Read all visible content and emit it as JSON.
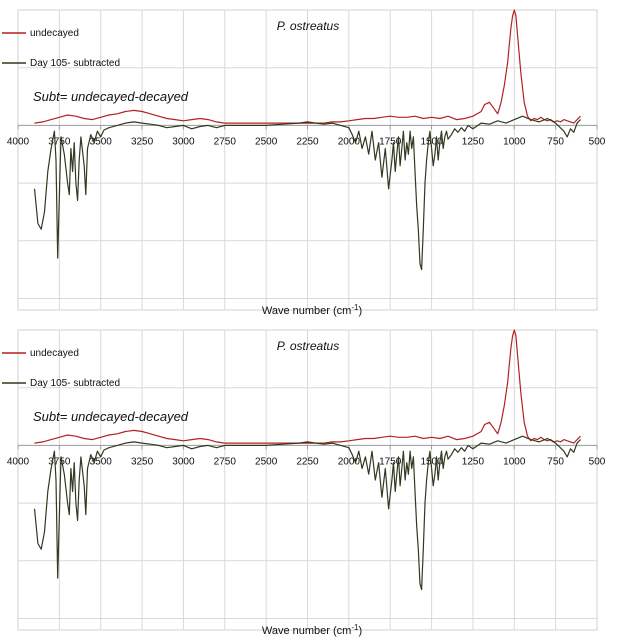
{
  "chart_data": [
    {
      "type": "line",
      "title": "P. ostreatus",
      "xlabel": "Wave number (cm",
      "xlabel_sup": "-1",
      "xlabel_close": ")",
      "annotation": "Subt= undecayed-decayed",
      "xlim": [
        4000,
        500
      ],
      "x_reversed": true,
      "ylim": [
        -1.6,
        1
      ],
      "grid": true,
      "legend_position": "top-left",
      "x_ticks": [
        "4000",
        "3750",
        "3500",
        "3250",
        "3000",
        "2750",
        "2500",
        "2250",
        "2000",
        "1750",
        "1500",
        "1250",
        "1000",
        "750",
        "500"
      ],
      "series": [
        {
          "name": "undecayed",
          "color": "#b22222",
          "x": [
            3900,
            3850,
            3800,
            3750,
            3700,
            3650,
            3600,
            3550,
            3500,
            3450,
            3400,
            3350,
            3300,
            3250,
            3200,
            3150,
            3100,
            3050,
            3000,
            2950,
            2900,
            2850,
            2800,
            2750,
            2700,
            2600,
            2500,
            2400,
            2350,
            2300,
            2250,
            2200,
            2150,
            2100,
            2050,
            2000,
            1950,
            1900,
            1850,
            1800,
            1750,
            1700,
            1650,
            1600,
            1550,
            1500,
            1450,
            1400,
            1350,
            1300,
            1250,
            1200,
            1180,
            1150,
            1120,
            1100,
            1080,
            1060,
            1040,
            1030,
            1020,
            1010,
            1000,
            990,
            980,
            960,
            940,
            920,
            900,
            880,
            860,
            840,
            820,
            800,
            780,
            760,
            740,
            720,
            700,
            680,
            660,
            640,
            620,
            600
          ],
          "y": [
            0.02,
            0.03,
            0.05,
            0.07,
            0.09,
            0.08,
            0.06,
            0.05,
            0.07,
            0.09,
            0.1,
            0.12,
            0.13,
            0.12,
            0.1,
            0.08,
            0.06,
            0.05,
            0.04,
            0.05,
            0.06,
            0.05,
            0.03,
            0.02,
            0.02,
            0.02,
            0.02,
            0.02,
            0.02,
            0.02,
            0.02,
            0.02,
            0.02,
            0.03,
            0.03,
            0.04,
            0.05,
            0.06,
            0.06,
            0.07,
            0.08,
            0.07,
            0.07,
            0.08,
            0.06,
            0.07,
            0.06,
            0.08,
            0.05,
            0.06,
            0.08,
            0.12,
            0.18,
            0.2,
            0.14,
            0.1,
            0.2,
            0.35,
            0.55,
            0.7,
            0.85,
            0.95,
            1.0,
            0.95,
            0.78,
            0.45,
            0.2,
            0.08,
            0.04,
            0.06,
            0.05,
            0.07,
            0.05,
            0.04,
            0.05,
            0.03,
            0.04,
            0.03,
            0.05,
            0.04,
            0.03,
            0.02,
            0.05,
            0.08
          ]
        },
        {
          "name": "Day 105- subtracted",
          "color": "#2f3a1f",
          "x": [
            3900,
            3880,
            3860,
            3840,
            3820,
            3800,
            3780,
            3770,
            3760,
            3750,
            3740,
            3720,
            3700,
            3690,
            3680,
            3670,
            3660,
            3650,
            3640,
            3630,
            3620,
            3600,
            3590,
            3580,
            3560,
            3540,
            3520,
            3500,
            3480,
            3450,
            3400,
            3350,
            3300,
            3250,
            3200,
            3150,
            3100,
            3050,
            3000,
            2950,
            2900,
            2850,
            2800,
            2750,
            2700,
            2600,
            2500,
            2400,
            2300,
            2250,
            2200,
            2150,
            2100,
            2050,
            2000,
            1980,
            1960,
            1940,
            1920,
            1900,
            1880,
            1860,
            1840,
            1820,
            1800,
            1780,
            1760,
            1740,
            1730,
            1720,
            1710,
            1700,
            1690,
            1680,
            1670,
            1660,
            1650,
            1640,
            1630,
            1620,
            1610,
            1600,
            1590,
            1580,
            1570,
            1560,
            1550,
            1540,
            1530,
            1520,
            1510,
            1500,
            1490,
            1480,
            1470,
            1460,
            1450,
            1440,
            1430,
            1420,
            1410,
            1400,
            1380,
            1360,
            1340,
            1320,
            1300,
            1280,
            1250,
            1220,
            1200,
            1150,
            1100,
            1050,
            1000,
            950,
            900,
            850,
            800,
            750,
            700,
            680,
            660,
            640,
            620,
            600
          ],
          "y": [
            -0.55,
            -0.85,
            -0.9,
            -0.75,
            -0.4,
            -0.2,
            -0.05,
            -0.3,
            -1.15,
            -0.6,
            -0.1,
            -0.25,
            -0.5,
            -0.6,
            -0.2,
            -0.4,
            -0.15,
            -0.5,
            -0.65,
            -0.3,
            -0.1,
            -0.35,
            -0.6,
            -0.2,
            -0.08,
            -0.15,
            -0.05,
            -0.1,
            -0.04,
            -0.02,
            0.0,
            0.02,
            0.03,
            0.02,
            0.01,
            0.0,
            -0.02,
            -0.01,
            0.0,
            -0.03,
            -0.01,
            0.0,
            -0.02,
            0.0,
            0.0,
            0.0,
            0.0,
            0.01,
            0.02,
            0.03,
            0.02,
            0.01,
            0.02,
            0.0,
            -0.02,
            -0.08,
            -0.15,
            -0.05,
            -0.2,
            -0.1,
            -0.25,
            -0.05,
            -0.3,
            -0.15,
            -0.45,
            -0.2,
            -0.55,
            -0.3,
            -0.15,
            -0.4,
            -0.25,
            -0.1,
            -0.35,
            -0.2,
            -0.05,
            -0.3,
            -0.15,
            -0.25,
            -0.05,
            -0.2,
            -0.1,
            -0.4,
            -0.7,
            -0.9,
            -1.2,
            -1.25,
            -0.9,
            -0.5,
            -0.3,
            -0.15,
            -0.05,
            -0.2,
            -0.35,
            -0.25,
            -0.1,
            -0.3,
            -0.15,
            -0.05,
            -0.2,
            -0.1,
            -0.05,
            -0.12,
            -0.08,
            -0.03,
            -0.06,
            -0.02,
            -0.05,
            0.0,
            -0.03,
            0.0,
            0.02,
            0.01,
            0.04,
            0.02,
            0.05,
            0.08,
            0.05,
            0.03,
            0.06,
            0.02,
            -0.05,
            -0.1,
            -0.03,
            -0.06,
            0.02,
            0.05
          ]
        }
      ]
    },
    {
      "type": "line",
      "title": "P. ostreatus",
      "xlabel": "Wave number (cm",
      "xlabel_sup": "-1",
      "xlabel_close": ")",
      "annotation": "Subt= undecayed-decayed",
      "xlim": [
        4000,
        500
      ],
      "x_reversed": true,
      "ylim": [
        -1.6,
        1
      ],
      "grid": true,
      "legend_position": "top-left",
      "x_ticks": [
        "4000",
        "3750",
        "3500",
        "3250",
        "3000",
        "2750",
        "2500",
        "2250",
        "2000",
        "1750",
        "1500",
        "1250",
        "1000",
        "750",
        "500"
      ],
      "series": [
        {
          "name": "undecayed",
          "color": "#b22222",
          "x": [
            3900,
            3850,
            3800,
            3750,
            3700,
            3650,
            3600,
            3550,
            3500,
            3450,
            3400,
            3350,
            3300,
            3250,
            3200,
            3150,
            3100,
            3050,
            3000,
            2950,
            2900,
            2850,
            2800,
            2750,
            2700,
            2600,
            2500,
            2400,
            2350,
            2300,
            2250,
            2200,
            2150,
            2100,
            2050,
            2000,
            1950,
            1900,
            1850,
            1800,
            1750,
            1700,
            1650,
            1600,
            1550,
            1500,
            1450,
            1400,
            1350,
            1300,
            1250,
            1200,
            1180,
            1150,
            1120,
            1100,
            1080,
            1060,
            1040,
            1030,
            1020,
            1010,
            1000,
            990,
            980,
            960,
            940,
            920,
            900,
            880,
            860,
            840,
            820,
            800,
            780,
            760,
            740,
            720,
            700,
            680,
            660,
            640,
            620,
            600
          ],
          "y": [
            0.02,
            0.03,
            0.05,
            0.07,
            0.09,
            0.08,
            0.06,
            0.05,
            0.07,
            0.09,
            0.1,
            0.12,
            0.13,
            0.12,
            0.1,
            0.08,
            0.06,
            0.05,
            0.04,
            0.05,
            0.06,
            0.05,
            0.03,
            0.02,
            0.02,
            0.02,
            0.02,
            0.02,
            0.02,
            0.02,
            0.02,
            0.02,
            0.02,
            0.03,
            0.03,
            0.04,
            0.05,
            0.06,
            0.06,
            0.07,
            0.08,
            0.07,
            0.07,
            0.08,
            0.06,
            0.07,
            0.06,
            0.08,
            0.05,
            0.06,
            0.08,
            0.12,
            0.18,
            0.2,
            0.14,
            0.1,
            0.2,
            0.35,
            0.55,
            0.7,
            0.85,
            0.95,
            1.0,
            0.95,
            0.78,
            0.45,
            0.2,
            0.08,
            0.04,
            0.06,
            0.05,
            0.07,
            0.05,
            0.04,
            0.05,
            0.03,
            0.04,
            0.03,
            0.05,
            0.04,
            0.03,
            0.02,
            0.05,
            0.08
          ]
        },
        {
          "name": "Day 105- subtracted",
          "color": "#2f3a1f",
          "x": [
            3900,
            3880,
            3860,
            3840,
            3820,
            3800,
            3780,
            3770,
            3760,
            3750,
            3740,
            3720,
            3700,
            3690,
            3680,
            3670,
            3660,
            3650,
            3640,
            3630,
            3620,
            3600,
            3590,
            3580,
            3560,
            3540,
            3520,
            3500,
            3480,
            3450,
            3400,
            3350,
            3300,
            3250,
            3200,
            3150,
            3100,
            3050,
            3000,
            2950,
            2900,
            2850,
            2800,
            2750,
            2700,
            2600,
            2500,
            2400,
            2300,
            2250,
            2200,
            2150,
            2100,
            2050,
            2000,
            1980,
            1960,
            1940,
            1920,
            1900,
            1880,
            1860,
            1840,
            1820,
            1800,
            1780,
            1760,
            1740,
            1730,
            1720,
            1710,
            1700,
            1690,
            1680,
            1670,
            1660,
            1650,
            1640,
            1630,
            1620,
            1610,
            1600,
            1590,
            1580,
            1570,
            1560,
            1550,
            1540,
            1530,
            1520,
            1510,
            1500,
            1490,
            1480,
            1470,
            1460,
            1450,
            1440,
            1430,
            1420,
            1410,
            1400,
            1380,
            1360,
            1340,
            1320,
            1300,
            1280,
            1250,
            1220,
            1200,
            1150,
            1100,
            1050,
            1000,
            950,
            900,
            850,
            800,
            750,
            700,
            680,
            660,
            640,
            620,
            600
          ],
          "y": [
            -0.55,
            -0.85,
            -0.9,
            -0.75,
            -0.4,
            -0.2,
            -0.05,
            -0.3,
            -1.15,
            -0.6,
            -0.1,
            -0.25,
            -0.5,
            -0.6,
            -0.2,
            -0.4,
            -0.15,
            -0.5,
            -0.65,
            -0.3,
            -0.1,
            -0.35,
            -0.6,
            -0.2,
            -0.08,
            -0.15,
            -0.05,
            -0.1,
            -0.04,
            -0.02,
            0.0,
            0.02,
            0.03,
            0.02,
            0.01,
            0.0,
            -0.02,
            -0.01,
            0.0,
            -0.03,
            -0.01,
            0.0,
            -0.02,
            0.0,
            0.0,
            0.0,
            0.0,
            0.01,
            0.02,
            0.03,
            0.02,
            0.01,
            0.02,
            0.0,
            -0.02,
            -0.08,
            -0.15,
            -0.05,
            -0.2,
            -0.1,
            -0.25,
            -0.05,
            -0.3,
            -0.15,
            -0.45,
            -0.2,
            -0.55,
            -0.3,
            -0.15,
            -0.4,
            -0.25,
            -0.1,
            -0.35,
            -0.2,
            -0.05,
            -0.3,
            -0.15,
            -0.25,
            -0.05,
            -0.2,
            -0.1,
            -0.4,
            -0.7,
            -0.9,
            -1.2,
            -1.25,
            -0.9,
            -0.5,
            -0.3,
            -0.15,
            -0.05,
            -0.2,
            -0.35,
            -0.25,
            -0.1,
            -0.3,
            -0.15,
            -0.05,
            -0.2,
            -0.1,
            -0.05,
            -0.12,
            -0.08,
            -0.03,
            -0.06,
            -0.02,
            -0.05,
            0.0,
            -0.03,
            0.0,
            0.02,
            0.01,
            0.04,
            0.02,
            0.05,
            0.08,
            0.05,
            0.03,
            0.06,
            0.02,
            -0.05,
            -0.1,
            -0.03,
            -0.06,
            0.02,
            0.05
          ]
        }
      ]
    }
  ]
}
